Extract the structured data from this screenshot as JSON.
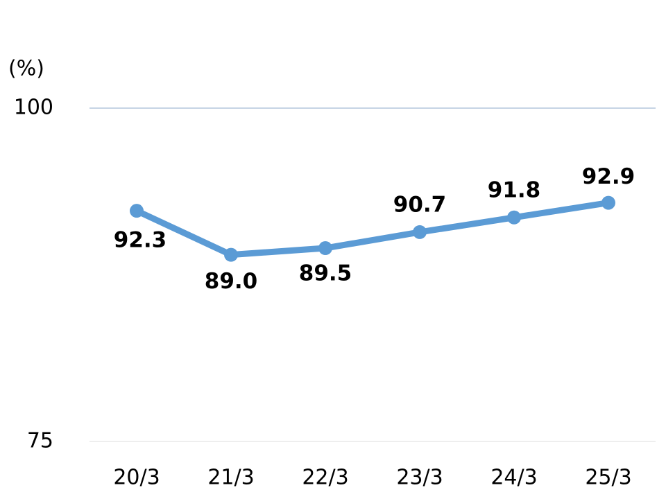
{
  "chart_data": {
    "type": "line",
    "y_axis_label": "(%)",
    "categories": [
      "20/3",
      "21/3",
      "22/3",
      "23/3",
      "24/3",
      "25/3"
    ],
    "series": [
      {
        "color": "#5b9bd5",
        "values": [
          92.3,
          89.0,
          89.5,
          90.7,
          91.8,
          92.9
        ],
        "value_labels": [
          "92.3",
          "89.0",
          "89.5",
          "90.7",
          "91.8",
          "92.9"
        ]
      }
    ],
    "ylim": [
      75,
      100
    ],
    "yticks": [
      75,
      100
    ],
    "grid": true
  }
}
